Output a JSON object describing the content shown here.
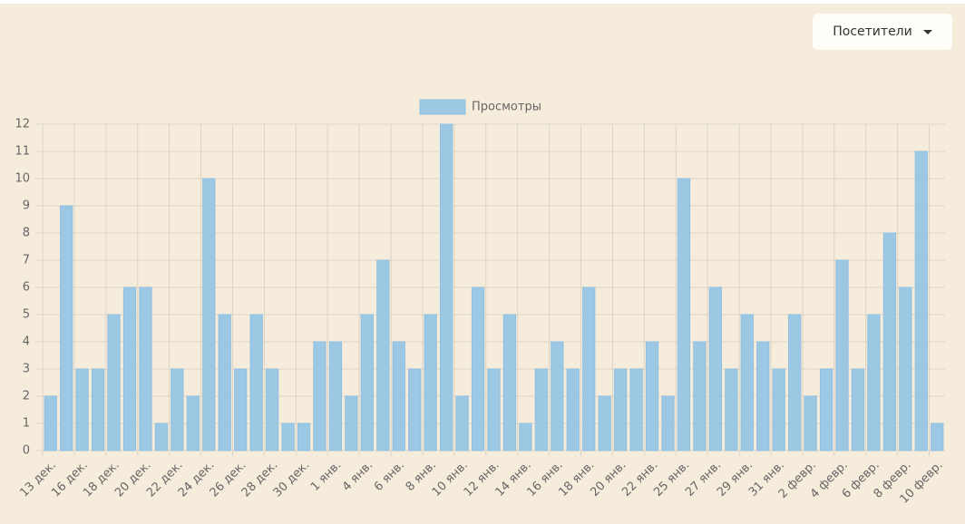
{
  "button": {
    "label": "Посетители"
  },
  "chart_data": {
    "type": "bar",
    "categories": [
      "13 дек.",
      null,
      "16 дек.",
      null,
      "18 дек.",
      null,
      "20 дек.",
      null,
      "22 дек.",
      null,
      "24 дек.",
      null,
      "26 дек.",
      null,
      "28 дек.",
      null,
      "30 дек.",
      null,
      "1 янв.",
      null,
      "4 янв.",
      null,
      "6 янв.",
      null,
      "8 янв.",
      null,
      "10 янв.",
      null,
      "12 янв.",
      null,
      "14 янв.",
      null,
      "16 янв.",
      null,
      "18 янв.",
      null,
      "20 янв.",
      null,
      "22 янв.",
      null,
      "25 янв.",
      null,
      "27 янв.",
      null,
      "29 янв.",
      null,
      "31 янв.",
      null,
      "2 февр.",
      null,
      "4 февр.",
      null,
      "6 февр.",
      null,
      "8 февр.",
      null,
      "10 февр."
    ],
    "series": [
      {
        "name": "Просмотры",
        "color": "#9dc8e4",
        "values": [
          2,
          9,
          3,
          3,
          5,
          6,
          6,
          1,
          3,
          2,
          10,
          5,
          3,
          5,
          3,
          1,
          1,
          4,
          4,
          2,
          5,
          7,
          4,
          3,
          5,
          12,
          2,
          6,
          3,
          5,
          1,
          3,
          4,
          3,
          6,
          2,
          3,
          3,
          4,
          2,
          10,
          4,
          6,
          3,
          5,
          4,
          3,
          5,
          2,
          3,
          7,
          3,
          5,
          8,
          6,
          11,
          1
        ]
      }
    ],
    "ylim": [
      0,
      12
    ],
    "yticks": [
      0,
      1,
      2,
      3,
      4,
      5,
      6,
      7,
      8,
      9,
      10,
      11,
      12
    ],
    "grid": true,
    "legend": "top"
  }
}
